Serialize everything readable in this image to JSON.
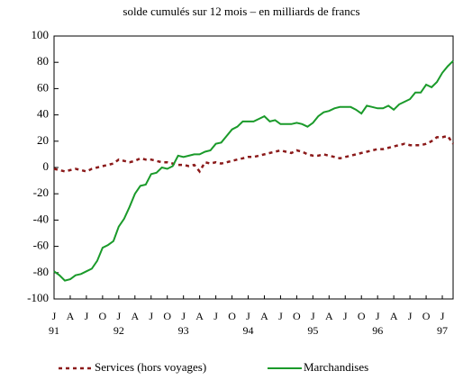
{
  "chart_data": {
    "type": "line",
    "title": "solde cumulés sur 12 mois – en milliards de francs",
    "categories": [
      "J",
      null,
      null,
      "A",
      null,
      null,
      "J",
      null,
      null,
      "O",
      null,
      null,
      "J",
      null,
      null,
      "A",
      null,
      null,
      "J",
      null,
      null,
      "O",
      null,
      null,
      "J",
      null,
      null,
      "A",
      null,
      null,
      "J",
      null,
      null,
      "O",
      null,
      null,
      "J",
      null,
      null,
      "A",
      null,
      null,
      "J",
      null,
      null,
      "O",
      null,
      null,
      "J",
      null,
      null,
      "A",
      null,
      null,
      "J",
      null,
      null,
      "O",
      null,
      null,
      "J",
      null,
      null,
      "A",
      null,
      null,
      "J",
      null,
      null,
      "O",
      null,
      null,
      "J",
      null,
      null
    ],
    "year_labels": [
      "91",
      null,
      null,
      null,
      null,
      null,
      null,
      null,
      null,
      null,
      null,
      null,
      "92",
      null,
      null,
      null,
      null,
      null,
      null,
      null,
      null,
      null,
      null,
      null,
      "93",
      null,
      null,
      null,
      null,
      null,
      null,
      null,
      null,
      null,
      null,
      null,
      "94",
      null,
      null,
      null,
      null,
      null,
      null,
      null,
      null,
      null,
      null,
      null,
      "95",
      null,
      null,
      null,
      null,
      null,
      null,
      null,
      null,
      null,
      null,
      null,
      "96",
      null,
      null,
      null,
      null,
      null,
      null,
      null,
      null,
      null,
      null,
      null,
      "97",
      null,
      null
    ],
    "series": [
      {
        "name": "Services (hors voyages)",
        "color": "#8b1a1a",
        "dashed": true,
        "values": [
          -1,
          -2,
          -3,
          -2,
          -1,
          -2,
          -3,
          -1,
          0,
          1,
          2,
          3,
          6,
          5,
          4,
          5,
          7,
          6,
          6,
          5,
          4,
          4,
          3,
          2,
          2,
          1,
          2,
          -3,
          4,
          3,
          4,
          3,
          4,
          5,
          6,
          7,
          8,
          8,
          9,
          10,
          11,
          12,
          13,
          12,
          11,
          13,
          12,
          10,
          9,
          9,
          10,
          9,
          8,
          7,
          8,
          9,
          10,
          11,
          12,
          13,
          14,
          14,
          15,
          16,
          17,
          18,
          17,
          17,
          17,
          18,
          20,
          23,
          23,
          24,
          18
        ]
      },
      {
        "name": "Marchandises",
        "color": "#1a9a2a",
        "dashed": false,
        "values": [
          -79,
          -82,
          -86,
          -85,
          -82,
          -81,
          -79,
          -77,
          -71,
          -61,
          -59,
          -56,
          -45,
          -39,
          -30,
          -20,
          -14,
          -13,
          -5,
          -4,
          0,
          -1,
          1,
          9,
          8,
          9,
          10,
          10,
          12,
          13,
          18,
          19,
          24,
          29,
          31,
          35,
          35,
          35,
          37,
          39,
          35,
          36,
          33,
          33,
          33,
          34,
          33,
          31,
          34,
          39,
          42,
          43,
          45,
          46,
          46,
          46,
          44,
          41,
          47,
          46,
          45,
          45,
          47,
          44,
          48,
          50,
          52,
          57,
          57,
          63,
          61,
          65,
          72,
          77,
          81
        ]
      }
    ],
    "ylim": [
      -100,
      100
    ],
    "yticks": [
      -100,
      -80,
      -60,
      -40,
      -20,
      0,
      20,
      40,
      60,
      80,
      100
    ],
    "grid": false,
    "legend": "bottom"
  }
}
